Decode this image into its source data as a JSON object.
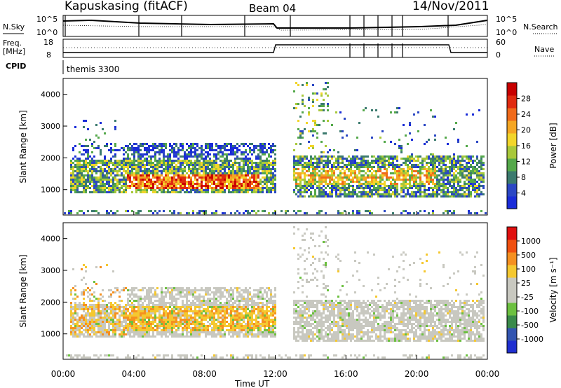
{
  "header": {
    "station": "Kapuskasing (fitACF)",
    "beam": "Beam 04",
    "date": "14/Nov/2011"
  },
  "summary_panels": {
    "nsky_label": "N.Sky",
    "nsky_ticks": [
      "10^5",
      "10^0"
    ],
    "nsearch_label": "N.Search",
    "nsearch_ticks": [
      "10^5",
      "10^0"
    ],
    "freq_label_1": "Freq.",
    "freq_label_2": "[MHz]",
    "freq_ticks": [
      "18",
      "8"
    ],
    "nave_label": "Nave",
    "nave_ticks": [
      "60",
      "0"
    ],
    "cpid_label": "CPID",
    "cpid_value": "themis 3300"
  },
  "chart_data": [
    {
      "type": "heatmap",
      "parameter": "Power",
      "ylabel": "Slant Range [km]",
      "xlabel": "Time UT",
      "x_ticks": [
        "00:00",
        "04:00",
        "08:00",
        "12:00",
        "16:00",
        "20:00",
        "00:00"
      ],
      "y_ticks": [
        "1000",
        "2000",
        "3000",
        "4000"
      ],
      "ylim": [
        200,
        4500
      ],
      "colorbar_label": "Power [dB]",
      "colorbar_ticks": [
        "4",
        "8",
        "12",
        "16",
        "20",
        "24",
        "28"
      ],
      "colorbar_range": [
        0,
        32
      ],
      "colorbar_colors": [
        "#1a2cd8",
        "#2b47c4",
        "#3b7a6e",
        "#54a84a",
        "#a8c83a",
        "#f2d52a",
        "#f5a623",
        "#f06a1a",
        "#e02a10",
        "#c80000"
      ]
    },
    {
      "type": "heatmap",
      "parameter": "Velocity",
      "ylabel": "Slant Range [km]",
      "xlabel": "Time UT",
      "x_ticks": [
        "00:00",
        "04:00",
        "08:00",
        "12:00",
        "16:00",
        "20:00",
        "00:00"
      ],
      "y_ticks": [
        "1000",
        "2000",
        "3000",
        "4000"
      ],
      "ylim": [
        200,
        4500
      ],
      "colorbar_label": "Velocity [m s⁻¹]",
      "colorbar_ticks": [
        "1000",
        "500",
        "100",
        "25",
        "-25",
        "-100",
        "-500",
        "-1000"
      ],
      "colorbar_colors": [
        "#1f2fd0",
        "#3355b0",
        "#3a8a4a",
        "#6cc040",
        "#c8c8c0",
        "#c8c8c0",
        "#f5c830",
        "#f59020",
        "#f05010",
        "#e01010"
      ]
    }
  ]
}
